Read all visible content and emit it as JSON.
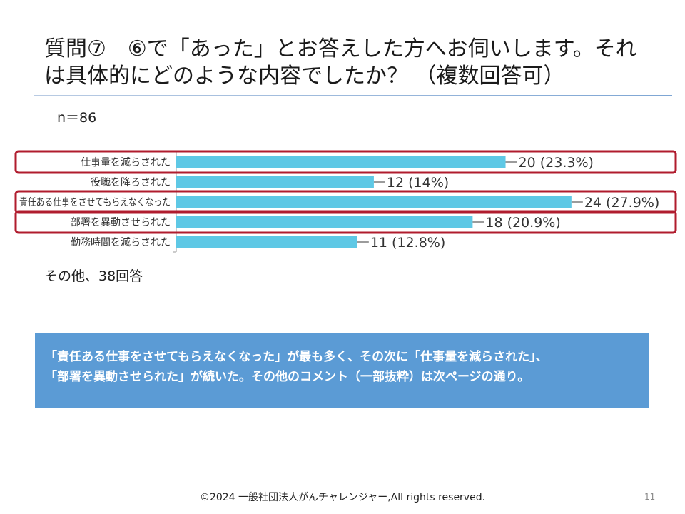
{
  "slide": {
    "title_line1": "質問⑦　⑥で「あった」とお答えした方へお伺いします。それ",
    "title_line2": "は具体的にどのような内容でしたか？ （複数回答可）",
    "n_label": "n＝86",
    "other_note": "その他、38回答",
    "summary_line1": "「責任ある仕事をさせてもらえなくなった」が最も多く、その次に「仕事量を減らされた」、",
    "summary_line2": "「部署を異動させられた」が続いた。その他のコメント（一部抜粋）は次ページの通り。",
    "footer": "©2024 一般社団法人がんチャレンジャー,All rights reserved.",
    "page_number": "11"
  },
  "chart_data": {
    "type": "bar",
    "orientation": "horizontal",
    "categories": [
      "仕事量を減らされた",
      "役職を降ろされた",
      "責任ある仕事をさせてもらえなくなった",
      "部署を異動させられた",
      "勤務時間を減らされた"
    ],
    "values": [
      20,
      12,
      24,
      18,
      11
    ],
    "data_labels": [
      "20 (23.3%)",
      "12 (14%)",
      "24 (27.9%)",
      "18 (20.9%)",
      "11 (12.8%)"
    ],
    "highlighted": [
      true,
      false,
      true,
      true,
      false
    ],
    "xlim": [
      0,
      26
    ],
    "colors": {
      "bar": "#5ec8e5",
      "highlight": "#b01c2e",
      "leader": "#7a7a7a"
    }
  }
}
